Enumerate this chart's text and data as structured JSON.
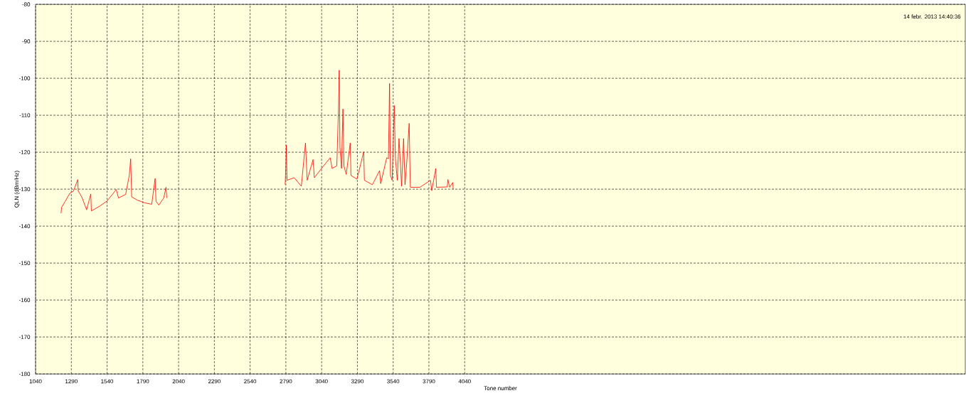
{
  "chart_data": {
    "type": "line",
    "xlabel": "Tone number",
    "ylabel": "QLN (dBm/Hz)",
    "annotations": [
      "14 febr. 2013 14:40:36"
    ],
    "xlim": [
      1040,
      7540
    ],
    "ylim": [
      -180,
      -80
    ],
    "xticks": [
      1040,
      1290,
      1540,
      1790,
      2040,
      2290,
      2540,
      2790,
      3040,
      3290,
      3540,
      3790,
      4040
    ],
    "yticks": [
      -180,
      -170,
      -160,
      -150,
      -140,
      -130,
      -120,
      -110,
      -100,
      -90,
      -80
    ],
    "grid": true,
    "marker": "none",
    "line_style": "solid",
    "series": [
      {
        "color": "#ff0000",
        "x": [
          1218,
          1222,
          1247,
          1280,
          1305,
          1335,
          1338,
          1363,
          1397,
          1426,
          1430,
          1488,
          1537,
          1571,
          1604,
          1620,
          1670,
          1695,
          1705,
          1712,
          1753,
          1803,
          1852,
          1876,
          1882,
          1902,
          1936,
          1952,
          1957,
          2400,
          2785,
          2790,
          2793,
          2798,
          2848,
          2898,
          2927,
          2939,
          2980,
          2989,
          3039,
          3100,
          3113,
          3146,
          3158,
          3163,
          3168,
          3179,
          3189,
          3196,
          3212,
          3240,
          3245,
          3287,
          3334,
          3339,
          3395,
          3445,
          3453,
          3495,
          3507,
          3515,
          3521,
          3533,
          3548,
          3556,
          3569,
          3581,
          3599,
          3613,
          3623,
          3635,
          3652,
          3660,
          3727,
          3801,
          3810,
          3838,
          3843,
          3918,
          3923,
          3935,
          3957,
          3960
        ],
        "values": [
          -136.5,
          -134.9,
          -133.3,
          -131.1,
          -130.5,
          -127.4,
          -130.5,
          -132.1,
          -135.6,
          -131.3,
          -135.9,
          -134.6,
          -133.3,
          -131.7,
          -130.1,
          -132.4,
          -131.4,
          -126.3,
          -121.8,
          -132.1,
          -133.0,
          -133.7,
          -134.1,
          -127.1,
          -133.3,
          -134.3,
          -132.4,
          -129.5,
          -132.4,
          null,
          -128.8,
          -123.7,
          -118.1,
          -127.6,
          -126.9,
          -129.2,
          -117.5,
          -127.6,
          -122.0,
          -126.9,
          -124.4,
          -121.5,
          -124.4,
          -123.7,
          -107.9,
          -97.8,
          -118.6,
          -124.4,
          -108.3,
          -123.7,
          -126.0,
          -117.5,
          -126.3,
          -127.3,
          -119.9,
          -127.6,
          -128.8,
          -125.0,
          -128.5,
          -121.5,
          -121.8,
          -101.4,
          -126.3,
          -127.6,
          -107.4,
          -121.8,
          -127.6,
          -116.3,
          -129.2,
          -116.3,
          -128.8,
          -122.8,
          -112.2,
          -129.5,
          -129.5,
          -127.6,
          -130.4,
          -124.4,
          -129.5,
          -129.4,
          -127.4,
          -129.5,
          -128.2,
          -130.1
        ]
      }
    ]
  }
}
